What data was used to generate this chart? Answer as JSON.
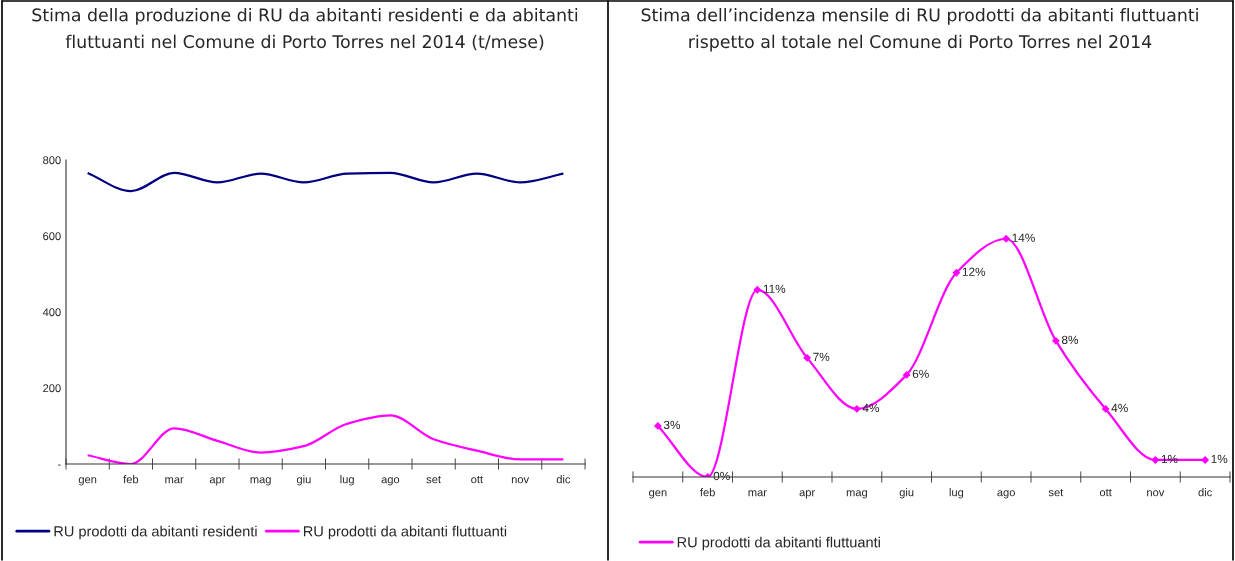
{
  "chart_data": [
    {
      "type": "line",
      "title": "Stima della produzione di RU da abitanti residenti e da abitanti fluttuanti nel Comune di Porto Torres nel 2014 (t/mese)",
      "categories": [
        "gen",
        "feb",
        "mar",
        "apr",
        "mag",
        "giu",
        "lug",
        "ago",
        "set",
        "ott",
        "nov",
        "dic"
      ],
      "series": [
        {
          "name": "RU prodotti da abitanti residenti",
          "color": "#000080",
          "values": [
            766,
            718,
            766,
            741,
            764,
            741,
            764,
            766,
            741,
            764,
            741,
            764
          ]
        },
        {
          "name": "RU prodotti da abitanti fluttuanti",
          "color": "#ff00ff",
          "values": [
            23,
            0,
            94,
            61,
            30,
            47,
            106,
            128,
            65,
            35,
            12,
            12
          ]
        }
      ],
      "ylim": [
        0,
        800
      ],
      "yticks": [
        {
          "value": 0,
          "label": "-"
        },
        200,
        400,
        600,
        800
      ],
      "legend": "bottom"
    },
    {
      "type": "line",
      "title": "Stima dell’incidenza mensile di RU prodotti da abitanti fluttuanti rispetto al totale nel Comune di Porto Torres nel 2014",
      "categories": [
        "gen",
        "feb",
        "mar",
        "apr",
        "mag",
        "giu",
        "lug",
        "ago",
        "set",
        "ott",
        "nov",
        "dic"
      ],
      "series": [
        {
          "name": "RU prodotti da abitanti fluttuanti",
          "color": "#ff00ff",
          "values": [
            3,
            0,
            11,
            7,
            4,
            6,
            12,
            14,
            8,
            4,
            1,
            1
          ],
          "value_labels": [
            "3%",
            "0%",
            "11%",
            "7%",
            "4%",
            "6%",
            "12%",
            "14%",
            "8%",
            "4%",
            "1%",
            "1%"
          ]
        }
      ],
      "marker": "diamond",
      "tick_labels": "x",
      "legend": "bottom"
    }
  ]
}
